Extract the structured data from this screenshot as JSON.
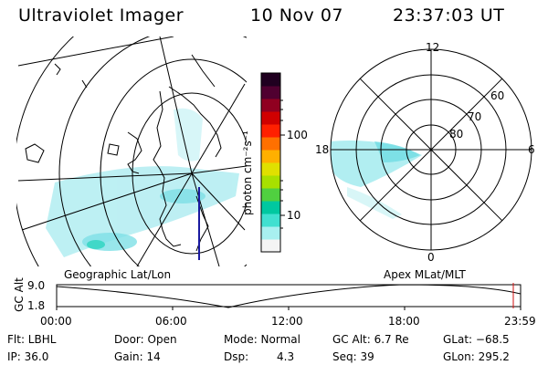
{
  "header": {
    "instrument": "Ultraviolet Imager",
    "date": "10 Nov 07",
    "time": "23:37:03 UT"
  },
  "colorbar": {
    "unit_label": "photon cm⁻²s⁻¹",
    "ticks": [
      "100",
      "10"
    ],
    "colors": [
      "#f4f4f4",
      "#a8f0f0",
      "#40e0d0",
      "#00c8a0",
      "#50d040",
      "#a8e000",
      "#e0e000",
      "#ffb000",
      "#ff7000",
      "#ff2000",
      "#d00000",
      "#900020",
      "#500030",
      "#200020"
    ]
  },
  "polar_plot": {
    "mlt_labels": {
      "top": "12",
      "right": "6",
      "bottom": "0",
      "left": "18"
    },
    "lat_labels": [
      "60",
      "70",
      "80"
    ]
  },
  "map_labels": {
    "left": "Geographic Lat/Lon",
    "right": "Apex MLat/MLT"
  },
  "altitude_track": {
    "axis_label": "GC Alt",
    "y_ticks": [
      "9.0",
      "1.8"
    ],
    "x_ticks": [
      "00:00",
      "06:00",
      "12:00",
      "18:00",
      "23:59"
    ]
  },
  "footer": {
    "filter": "Flt: LBHL",
    "ip": "IP: 36.0",
    "door": "Door: Open",
    "gain": "Gain: 14",
    "mode": "Mode: Normal",
    "dsp_label": "Dsp:",
    "dsp_value": "4.3",
    "gc_alt": "GC Alt: 6.7 Re",
    "seq": "Seq: 39",
    "glat": "GLat: −68.5",
    "glon": "GLon: 295.2"
  }
}
